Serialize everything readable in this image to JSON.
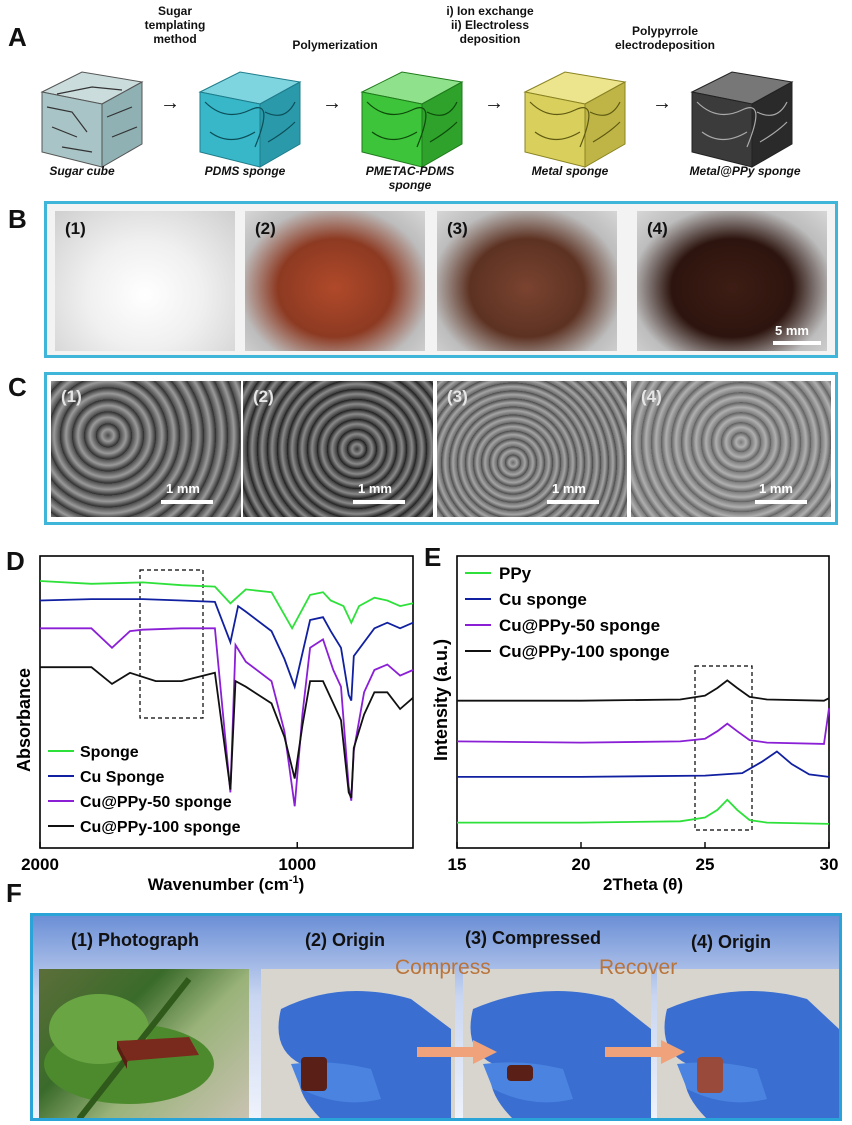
{
  "panel_labels": {
    "a": "A",
    "b": "B",
    "c": "C",
    "d": "D",
    "e": "E",
    "f": "F"
  },
  "panel_a": {
    "steps": [
      "Sugar\ntemplating\nmethod",
      "Polymerization",
      "i) Ion exchange\nii) Electroless\ndeposition",
      "Polypyrrole\nelectrodeposition"
    ],
    "cubes": [
      "Sugar cube",
      "PDMS sponge",
      "PMETAC-PDMS\nsponge",
      "Metal sponge",
      "Metal@PPy sponge"
    ],
    "cube_colors": [
      "#a8c4c6",
      "#38b7c9",
      "#3ec43a",
      "#d9cf5c",
      "#3b3b3b"
    ]
  },
  "panel_b": {
    "sub_labels": [
      "(1)",
      "(2)",
      "(3)",
      "(4)"
    ],
    "scale_label": "5 mm",
    "photo_colors": [
      "#f2f2f2",
      "#9a3b22",
      "#6d3a26",
      "#3a1a12"
    ]
  },
  "panel_c": {
    "sub_labels": [
      "(1)",
      "(2)",
      "(3)",
      "(4)"
    ],
    "scale_label": "1 mm"
  },
  "panel_d": {
    "ylabel": "Absorbance",
    "xlabel": "Wavenumber (cm",
    "xlabel_sup": "-1",
    "xlabel_end": ")",
    "tick_labels": [
      "2000",
      "1000"
    ],
    "legend": [
      "Sponge",
      "Cu Sponge",
      "Cu@PPy-50 sponge",
      "Cu@PPy-100 sponge"
    ],
    "colors": [
      "#2ee13a",
      "#1020a0",
      "#8a1fd6",
      "#111111"
    ]
  },
  "panel_e": {
    "ylabel": "Intensity (a.u.)",
    "xlabel": "2Theta (θ)",
    "tick_labels": [
      "15",
      "20",
      "25",
      "30"
    ],
    "legend": [
      "PPy",
      "Cu sponge",
      "Cu@PPy-50 sponge",
      "Cu@PPy-100 sponge"
    ],
    "colors": [
      "#2ee13a",
      "#1020a0",
      "#8a1fd6",
      "#111111"
    ]
  },
  "chart_data": [
    {
      "type": "line",
      "panel": "D",
      "xlabel": "Wavenumber (cm-1)",
      "ylabel": "Absorbance",
      "xlim": [
        2000,
        550
      ],
      "x_reversed": true,
      "xticks": [
        2000,
        1000
      ],
      "series": [
        {
          "name": "Sponge",
          "color": "#2ee13a",
          "x": [
            2000,
            1800,
            1600,
            1450,
            1320,
            1260,
            1200,
            1100,
            1020,
            950,
            900,
            870,
            820,
            790,
            760,
            700,
            650,
            600,
            550
          ],
          "y": [
            8.6,
            8.5,
            8.55,
            8.45,
            8.4,
            7.8,
            8.3,
            8.2,
            6.9,
            8.1,
            8.2,
            7.9,
            7.7,
            7.1,
            7.7,
            8.0,
            7.9,
            7.7,
            7.8
          ]
        },
        {
          "name": "Cu Sponge",
          "color": "#1020a0",
          "x": [
            2000,
            1800,
            1600,
            1450,
            1320,
            1260,
            1230,
            1200,
            1100,
            1050,
            1010,
            950,
            900,
            870,
            830,
            800,
            790,
            780,
            700,
            650,
            600,
            550
          ],
          "y": [
            7.9,
            7.95,
            7.95,
            7.9,
            7.85,
            6.4,
            7.7,
            7.5,
            6.8,
            5.8,
            4.8,
            7.2,
            7.3,
            6.8,
            6.2,
            4.5,
            4.3,
            5.9,
            6.9,
            7.1,
            6.9,
            7.1
          ]
        },
        {
          "name": "Cu@PPy-50 sponge",
          "color": "#8a1fd6",
          "x": [
            2000,
            1800,
            1720,
            1650,
            1600,
            1450,
            1320,
            1260,
            1240,
            1200,
            1100,
            1050,
            1010,
            980,
            950,
            900,
            860,
            830,
            800,
            790,
            780,
            740,
            700,
            650,
            600,
            550
          ],
          "y": [
            6.9,
            6.9,
            6.2,
            6.8,
            6.85,
            6.9,
            6.9,
            1.0,
            6.3,
            5.7,
            5.0,
            3.2,
            0.5,
            3.8,
            6.2,
            6.5,
            5.4,
            4.8,
            1.2,
            0.7,
            2.5,
            4.6,
            5.4,
            5.6,
            5.2,
            5.4
          ]
        },
        {
          "name": "Cu@PPy-100 sponge",
          "color": "#111111",
          "x": [
            2000,
            1800,
            1720,
            1650,
            1550,
            1450,
            1320,
            1260,
            1240,
            1200,
            1100,
            1050,
            1010,
            980,
            950,
            900,
            860,
            830,
            800,
            790,
            780,
            740,
            700,
            650,
            600,
            550
          ],
          "y": [
            5.5,
            5.5,
            4.9,
            5.3,
            5.0,
            5.0,
            5.3,
            1.1,
            5.0,
            4.8,
            4.2,
            3.0,
            1.5,
            3.4,
            5.0,
            5.0,
            4.2,
            3.6,
            1.0,
            0.8,
            2.6,
            3.8,
            4.6,
            4.6,
            4.0,
            4.4
          ]
        }
      ]
    },
    {
      "type": "line",
      "panel": "E",
      "xlabel": "2Theta (θ)",
      "ylabel": "Intensity (a.u.)",
      "xlim": [
        15,
        30
      ],
      "xticks": [
        15,
        20,
        25,
        30
      ],
      "series": [
        {
          "name": "PPy",
          "color": "#2ee13a",
          "x": [
            15,
            20,
            24,
            25,
            25.5,
            25.9,
            26.3,
            26.8,
            27.5,
            30
          ],
          "y": [
            1.0,
            1.0,
            1.05,
            1.2,
            1.5,
            1.9,
            1.5,
            1.1,
            1.0,
            0.95
          ]
        },
        {
          "name": "Cu sponge",
          "color": "#1020a0",
          "x": [
            15,
            20,
            25,
            26.5,
            27.3,
            27.9,
            28.5,
            29.2,
            30
          ],
          "y": [
            2.8,
            2.8,
            2.85,
            2.95,
            3.4,
            3.8,
            3.3,
            2.9,
            2.8
          ]
        },
        {
          "name": "Cu@PPy-50 sponge",
          "color": "#8a1fd6",
          "x": [
            15,
            20,
            24,
            25,
            25.5,
            25.9,
            26.3,
            26.8,
            27.5,
            29.8,
            30
          ],
          "y": [
            4.2,
            4.15,
            4.2,
            4.3,
            4.6,
            4.9,
            4.6,
            4.25,
            4.15,
            4.1,
            5.5
          ]
        },
        {
          "name": "Cu@PPy-100 sponge",
          "color": "#111111",
          "x": [
            15,
            20,
            24,
            25,
            25.5,
            25.9,
            26.3,
            26.8,
            27.5,
            29.8,
            30
          ],
          "y": [
            5.8,
            5.8,
            5.85,
            6.0,
            6.3,
            6.6,
            6.3,
            5.95,
            5.85,
            5.8,
            5.9
          ]
        }
      ]
    }
  ],
  "panel_f": {
    "titles": [
      "(1) Photograph",
      "(2) Origin",
      "(3) Compressed",
      "(4) Origin"
    ],
    "overlays": [
      "Compress",
      "Recover"
    ]
  }
}
